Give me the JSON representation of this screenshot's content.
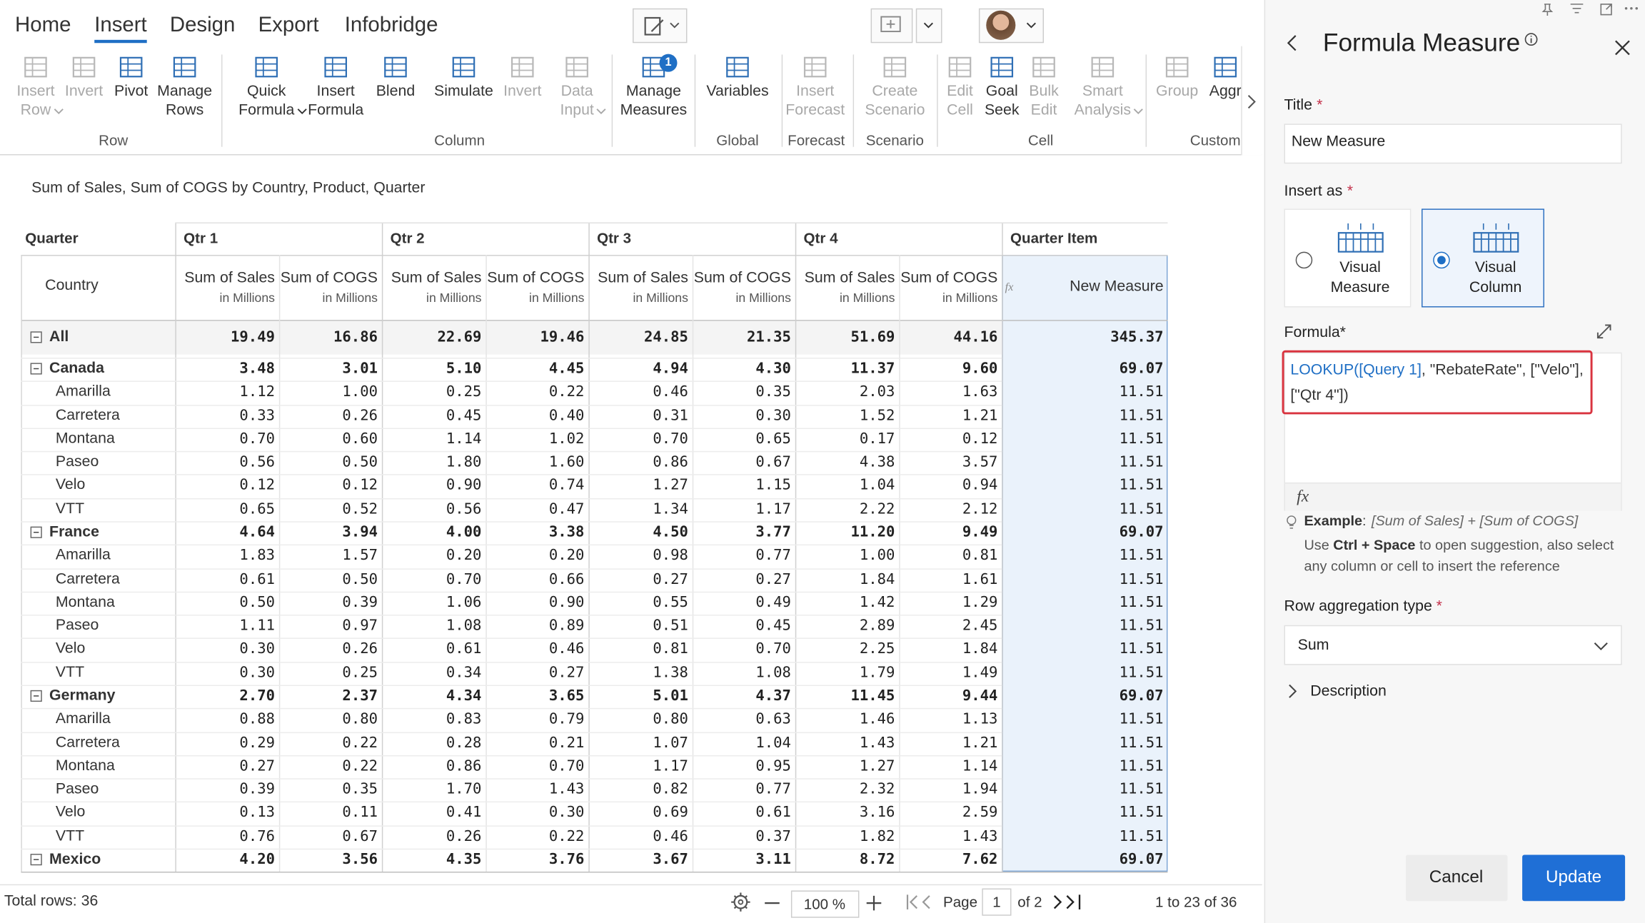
{
  "ribbon": {
    "tabs": [
      "Home",
      "Insert",
      "Design",
      "Export",
      "Infobridge"
    ],
    "active_tab": 1,
    "groups": [
      {
        "label": "Row",
        "buttons": [
          {
            "label": [
              "Insert",
              "Row"
            ],
            "disabled": true,
            "dropdown": true
          },
          {
            "label": [
              "Invert"
            ],
            "disabled": true
          },
          {
            "label": [
              "Pivot"
            ]
          },
          {
            "label": [
              "Manage",
              "Rows"
            ]
          }
        ]
      },
      {
        "label": "Column",
        "buttons": [
          {
            "label": [
              "Quick",
              "Formula"
            ],
            "dropdown": true
          },
          {
            "label": [
              "Insert",
              "Formula"
            ]
          },
          {
            "label": [
              "Blend"
            ]
          },
          {
            "label": [
              "Simulate"
            ]
          },
          {
            "label": [
              "Invert"
            ],
            "disabled": true
          },
          {
            "label": [
              "Data",
              "Input"
            ],
            "disabled": true,
            "dropdown": true
          }
        ]
      },
      {
        "buttons": [
          {
            "label": [
              "Manage",
              "Measures"
            ],
            "badge": "1"
          }
        ]
      },
      {
        "label": "Global",
        "buttons": [
          {
            "label": [
              "Variables"
            ]
          }
        ]
      },
      {
        "label": "Forecast",
        "buttons": [
          {
            "label": [
              "Insert",
              "Forecast"
            ],
            "disabled": true
          }
        ]
      },
      {
        "label": "Scenario",
        "buttons": [
          {
            "label": [
              "Create",
              "Scenario"
            ],
            "disabled": true
          }
        ]
      },
      {
        "label": "Cell",
        "buttons": [
          {
            "label": [
              "Edit",
              "Cell"
            ],
            "disabled": true
          },
          {
            "label": [
              "Goal",
              "Seek"
            ]
          },
          {
            "label": [
              "Bulk",
              "Edit"
            ],
            "disabled": true
          },
          {
            "label": [
              "Smart",
              "Analysis"
            ],
            "disabled": true,
            "dropdown": true
          }
        ]
      },
      {
        "label": "Customi",
        "buttons": [
          {
            "label": [
              "Group"
            ],
            "disabled": true
          },
          {
            "label": [
              "Aggr"
            ]
          }
        ]
      }
    ]
  },
  "table": {
    "subtitle": "Sum of Sales, Sum of COGS by Country, Product, Quarter",
    "row_header": "Quarter",
    "country_header": "Country",
    "quarters": [
      "Qtr 1",
      "Qtr 2",
      "Qtr 3",
      "Qtr 4"
    ],
    "item_header": "Quarter Item",
    "measures": [
      [
        "Sum of Sales",
        "in Millions"
      ],
      [
        "Sum of COGS",
        "in Millions"
      ]
    ],
    "new_measure": "New Measure",
    "rows": [
      {
        "label": "All",
        "group": true,
        "values": [
          "19.49",
          "16.86",
          "22.69",
          "19.46",
          "24.85",
          "21.35",
          "51.69",
          "44.16",
          "345.37"
        ]
      },
      {
        "label": "Canada",
        "group": true,
        "values": [
          "3.48",
          "3.01",
          "5.10",
          "4.45",
          "4.94",
          "4.30",
          "11.37",
          "9.60",
          "69.07"
        ]
      },
      {
        "label": "Amarilla",
        "values": [
          "1.12",
          "1.00",
          "0.25",
          "0.22",
          "0.46",
          "0.35",
          "2.03",
          "1.63",
          "11.51"
        ]
      },
      {
        "label": "Carretera",
        "values": [
          "0.33",
          "0.26",
          "0.45",
          "0.40",
          "0.31",
          "0.30",
          "1.52",
          "1.21",
          "11.51"
        ]
      },
      {
        "label": "Montana",
        "values": [
          "0.70",
          "0.60",
          "1.14",
          "1.02",
          "0.70",
          "0.65",
          "0.17",
          "0.12",
          "11.51"
        ]
      },
      {
        "label": "Paseo",
        "values": [
          "0.56",
          "0.50",
          "1.80",
          "1.60",
          "0.86",
          "0.67",
          "4.38",
          "3.57",
          "11.51"
        ]
      },
      {
        "label": "Velo",
        "values": [
          "0.12",
          "0.12",
          "0.90",
          "0.74",
          "1.27",
          "1.15",
          "1.04",
          "0.94",
          "11.51"
        ]
      },
      {
        "label": "VTT",
        "values": [
          "0.65",
          "0.52",
          "0.56",
          "0.47",
          "1.34",
          "1.17",
          "2.22",
          "2.12",
          "11.51"
        ]
      },
      {
        "label": "France",
        "group": true,
        "values": [
          "4.64",
          "3.94",
          "4.00",
          "3.38",
          "4.50",
          "3.77",
          "11.20",
          "9.49",
          "69.07"
        ]
      },
      {
        "label": "Amarilla",
        "values": [
          "1.83",
          "1.57",
          "0.20",
          "0.20",
          "0.98",
          "0.77",
          "1.00",
          "0.81",
          "11.51"
        ]
      },
      {
        "label": "Carretera",
        "values": [
          "0.61",
          "0.50",
          "0.70",
          "0.66",
          "0.27",
          "0.27",
          "1.84",
          "1.61",
          "11.51"
        ]
      },
      {
        "label": "Montana",
        "values": [
          "0.50",
          "0.39",
          "1.06",
          "0.90",
          "0.55",
          "0.49",
          "1.42",
          "1.29",
          "11.51"
        ]
      },
      {
        "label": "Paseo",
        "values": [
          "1.11",
          "0.97",
          "1.08",
          "0.89",
          "0.51",
          "0.45",
          "2.89",
          "2.45",
          "11.51"
        ]
      },
      {
        "label": "Velo",
        "values": [
          "0.30",
          "0.26",
          "0.61",
          "0.46",
          "0.81",
          "0.70",
          "2.25",
          "1.84",
          "11.51"
        ]
      },
      {
        "label": "VTT",
        "values": [
          "0.30",
          "0.25",
          "0.34",
          "0.27",
          "1.38",
          "1.08",
          "1.79",
          "1.49",
          "11.51"
        ]
      },
      {
        "label": "Germany",
        "group": true,
        "values": [
          "2.70",
          "2.37",
          "4.34",
          "3.65",
          "5.01",
          "4.37",
          "11.45",
          "9.44",
          "69.07"
        ]
      },
      {
        "label": "Amarilla",
        "values": [
          "0.88",
          "0.80",
          "0.83",
          "0.79",
          "0.80",
          "0.63",
          "1.46",
          "1.13",
          "11.51"
        ]
      },
      {
        "label": "Carretera",
        "values": [
          "0.29",
          "0.22",
          "0.28",
          "0.21",
          "1.07",
          "1.04",
          "1.43",
          "1.21",
          "11.51"
        ]
      },
      {
        "label": "Montana",
        "values": [
          "0.27",
          "0.22",
          "0.86",
          "0.70",
          "1.17",
          "0.95",
          "1.27",
          "1.14",
          "11.51"
        ]
      },
      {
        "label": "Paseo",
        "values": [
          "0.39",
          "0.35",
          "1.70",
          "1.43",
          "0.82",
          "0.77",
          "2.32",
          "1.94",
          "11.51"
        ]
      },
      {
        "label": "Velo",
        "values": [
          "0.13",
          "0.11",
          "0.41",
          "0.30",
          "0.69",
          "0.61",
          "3.16",
          "2.59",
          "11.51"
        ]
      },
      {
        "label": "VTT",
        "values": [
          "0.76",
          "0.67",
          "0.26",
          "0.22",
          "0.46",
          "0.37",
          "1.82",
          "1.43",
          "11.51"
        ]
      },
      {
        "label": "Mexico",
        "group": true,
        "values": [
          "4.20",
          "3.56",
          "4.35",
          "3.76",
          "3.67",
          "3.11",
          "8.72",
          "7.62",
          "69.07"
        ]
      }
    ]
  },
  "footer": {
    "total_rows": "Total rows: 36",
    "zoom": "100 %",
    "page_label": "Page",
    "page": "1",
    "page_of": "of 2",
    "range": "1 to 23 of 36"
  },
  "panel": {
    "title": "Formula Measure",
    "title_label": "Title",
    "required": "*",
    "title_value": "New Measure",
    "insert_as_label": "Insert as",
    "options": [
      {
        "label": [
          "Visual",
          "Measure"
        ]
      },
      {
        "label": [
          "Visual",
          "Column"
        ],
        "selected": true
      }
    ],
    "formula_label": "Formula*",
    "formula": [
      {
        "text": "LOOKUP([Query 1]",
        "color": "#1f6fc5"
      },
      {
        "text": ", \"RebateRate\", [\"Velo\"], [\"Qtr 4\"])",
        "color": "#333333"
      }
    ],
    "example_label": "Example",
    "example_colon": ":",
    "example": "[Sum of Sales] + [Sum of COGS]",
    "hint": [
      "Use ",
      "Ctrl + Space",
      " to open suggestion, also select any column or cell to insert the reference"
    ],
    "aggregation_label": "Row aggregation type",
    "aggregation_value": "Sum",
    "description": "Description",
    "cancel": "Cancel",
    "update": "Update"
  }
}
